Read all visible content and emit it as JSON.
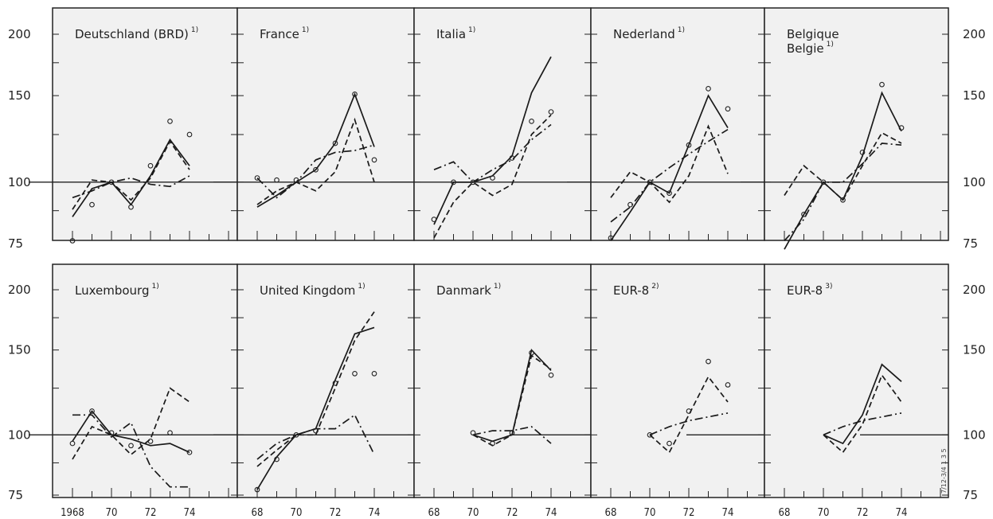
{
  "y_axis": {
    "top_labels": [
      "200",
      "150",
      "100",
      "75"
    ],
    "bottom_labels": [
      "200",
      "150",
      "100",
      "75"
    ],
    "values": [
      200,
      150,
      100,
      75
    ]
  },
  "x_axis": {
    "first_tick_labels": [
      "1968",
      "70",
      "72",
      "74"
    ],
    "tick_labels": [
      "68",
      "70",
      "72",
      "74"
    ],
    "years": [
      1968,
      1970,
      1972,
      1974
    ]
  },
  "watermark": "7/12-3/4 1 3 5",
  "chart_data": [
    {
      "type": "line",
      "title": "Deutschland (BRD)",
      "note": "1)",
      "scale": "log",
      "ylim": [
        75,
        220
      ],
      "x": [
        1968,
        1969,
        1970,
        1971,
        1972,
        1973,
        1974
      ],
      "series": [
        {
          "style": "solid",
          "values": [
            85,
            97,
            100,
            90,
            103,
            122,
            108
          ]
        },
        {
          "style": "dashed",
          "values": [
            88,
            101,
            100,
            92,
            102,
            121,
            106
          ]
        },
        {
          "style": "dashdot",
          "values": [
            93,
            96,
            100,
            102,
            99,
            98,
            103
          ]
        },
        {
          "style": "markers",
          "values": [
            76,
            90,
            100,
            89,
            108,
            133,
            125
          ]
        }
      ]
    },
    {
      "type": "line",
      "title": "France",
      "note": "1)",
      "scale": "log",
      "ylim": [
        75,
        220
      ],
      "x": [
        1968,
        1969,
        1970,
        1971,
        1972,
        1973,
        1974
      ],
      "series": [
        {
          "style": "solid",
          "values": [
            89,
            94,
            100,
            106,
            120,
            151,
            118
          ]
        },
        {
          "style": "dashed",
          "values": [
            90,
            96,
            100,
            96,
            105,
            134,
            100
          ]
        },
        {
          "style": "dashdot",
          "values": [
            102,
            93,
            100,
            111,
            115,
            116,
            119
          ]
        },
        {
          "style": "markers",
          "values": [
            102,
            101,
            101,
            106,
            120,
            151,
            111
          ]
        }
      ]
    },
    {
      "type": "line",
      "title": "Italia",
      "note": "1)",
      "scale": "log",
      "ylim": [
        75,
        220
      ],
      "x": [
        1968,
        1969,
        1970,
        1971,
        1972,
        1973,
        1974
      ],
      "series": [
        {
          "style": "solid",
          "values": [
            82,
            100,
            100,
            103,
            113,
            152,
            180
          ]
        },
        {
          "style": "dashed",
          "values": [
            77,
            91,
            100,
            94,
            99,
            125,
            137
          ]
        },
        {
          "style": "dashdot",
          "values": [
            106,
            110,
            100,
            106,
            111,
            122,
            131
          ]
        },
        {
          "style": "markers",
          "values": [
            84,
            100,
            100,
            102,
            112,
            133,
            139
          ]
        }
      ]
    },
    {
      "type": "line",
      "title": "Nederland",
      "note": "1)",
      "scale": "log",
      "ylim": [
        75,
        220
      ],
      "x": [
        1968,
        1969,
        1970,
        1971,
        1972,
        1973,
        1974
      ],
      "series": [
        {
          "style": "solid",
          "values": [
            76,
            87,
            100,
            95,
            119,
            150,
            129
          ]
        },
        {
          "style": "dashed",
          "values": [
            93,
            105,
            100,
            91,
            103,
            130,
            104
          ]
        },
        {
          "style": "dashdot",
          "values": [
            83,
            89,
            100,
            107,
            114,
            121,
            128
          ]
        },
        {
          "style": "markers",
          "values": [
            77,
            90,
            100,
            95,
            119,
            155,
            141
          ]
        }
      ]
    },
    {
      "type": "line",
      "title": "Belgique",
      "subtitle": "Belgie",
      "note": "1)",
      "scale": "log",
      "ylim": [
        65,
        220
      ],
      "x": [
        1968,
        1969,
        1970,
        1971,
        1972,
        1973,
        1974
      ],
      "series": [
        {
          "style": "solid",
          "values": [
            73,
            86,
            100,
            92,
            113,
            152,
            127
          ]
        },
        {
          "style": "dashed",
          "values": [
            94,
            108,
            100,
            92,
            108,
            126,
            120
          ]
        },
        {
          "style": "dashdot",
          "values": [
            76,
            84,
            100,
            100,
            109,
            120,
            119
          ]
        },
        {
          "style": "markers",
          "values": [
            66,
            86,
            100,
            92,
            115,
            158,
            129
          ]
        }
      ]
    },
    {
      "type": "line",
      "title": "Luxembourg",
      "note": "1)",
      "scale": "log",
      "ylim": [
        75,
        220
      ],
      "x": [
        1968,
        1969,
        1970,
        1971,
        1972,
        1973,
        1974
      ],
      "series": [
        {
          "style": "solid",
          "values": [
            97,
            112,
            100,
            98,
            95,
            96,
            92
          ]
        },
        {
          "style": "dashed",
          "values": [
            89,
            104,
            100,
            91,
            98,
            125,
            117
          ]
        },
        {
          "style": "dashdot",
          "values": [
            110,
            110,
            99,
            106,
            86,
            78,
            78
          ]
        },
        {
          "style": "markers",
          "values": [
            96,
            112,
            101,
            95,
            97,
            101,
            92
          ]
        }
      ]
    },
    {
      "type": "line",
      "title": "United Kingdom",
      "note": "1)",
      "scale": "log",
      "ylim": [
        75,
        220
      ],
      "x": [
        1968,
        1969,
        1970,
        1971,
        1972,
        1973,
        1974
      ],
      "series": [
        {
          "style": "solid",
          "values": [
            77,
            90,
            100,
            103,
            130,
            162,
            167
          ]
        },
        {
          "style": "dashed",
          "values": [
            86,
            93,
            100,
            100,
            125,
            157,
            180
          ]
        },
        {
          "style": "dashdot",
          "values": [
            89,
            96,
            100,
            103,
            103,
            110,
            91
          ]
        },
        {
          "style": "markers",
          "values": [
            77,
            89,
            100,
            102,
            128,
            134,
            134
          ]
        }
      ]
    },
    {
      "type": "line",
      "title": "Danmark",
      "note": "1)",
      "scale": "log",
      "ylim": [
        75,
        220
      ],
      "x": [
        1970,
        1971,
        1972,
        1973,
        1974
      ],
      "series": [
        {
          "style": "solid",
          "values": [
            100,
            97,
            100,
            150,
            136
          ]
        },
        {
          "style": "dashed",
          "values": [
            100,
            95,
            100,
            146,
            137
          ]
        },
        {
          "style": "dashdot",
          "values": [
            100,
            102,
            102,
            104,
            96
          ]
        },
        {
          "style": "markers",
          "values": [
            101,
            96,
            101,
            148,
            133
          ]
        }
      ]
    },
    {
      "type": "line",
      "title": "EUR-8",
      "note": "2)",
      "scale": "log",
      "ylim": [
        75,
        220
      ],
      "x": [
        1970,
        1971,
        1972,
        1973,
        1974
      ],
      "series": [
        {
          "style": "dashed",
          "values": [
            100,
            92,
            110,
            132,
            117
          ]
        },
        {
          "style": "dashdot",
          "values": [
            100,
            104,
            107,
            109,
            111
          ]
        },
        {
          "style": "markers",
          "values": [
            100,
            96,
            112,
            142,
            127
          ]
        }
      ]
    },
    {
      "type": "line",
      "title": "EUR-8",
      "note": "3)",
      "scale": "log",
      "ylim": [
        75,
        220
      ],
      "x": [
        1970,
        1971,
        1972,
        1973,
        1974
      ],
      "series": [
        {
          "style": "solid",
          "values": [
            100,
            96,
            110,
            140,
            129
          ]
        },
        {
          "style": "dashed",
          "values": [
            100,
            92,
            105,
            133,
            117
          ]
        },
        {
          "style": "dashdot",
          "values": [
            100,
            104,
            107,
            109,
            111
          ]
        }
      ]
    }
  ]
}
